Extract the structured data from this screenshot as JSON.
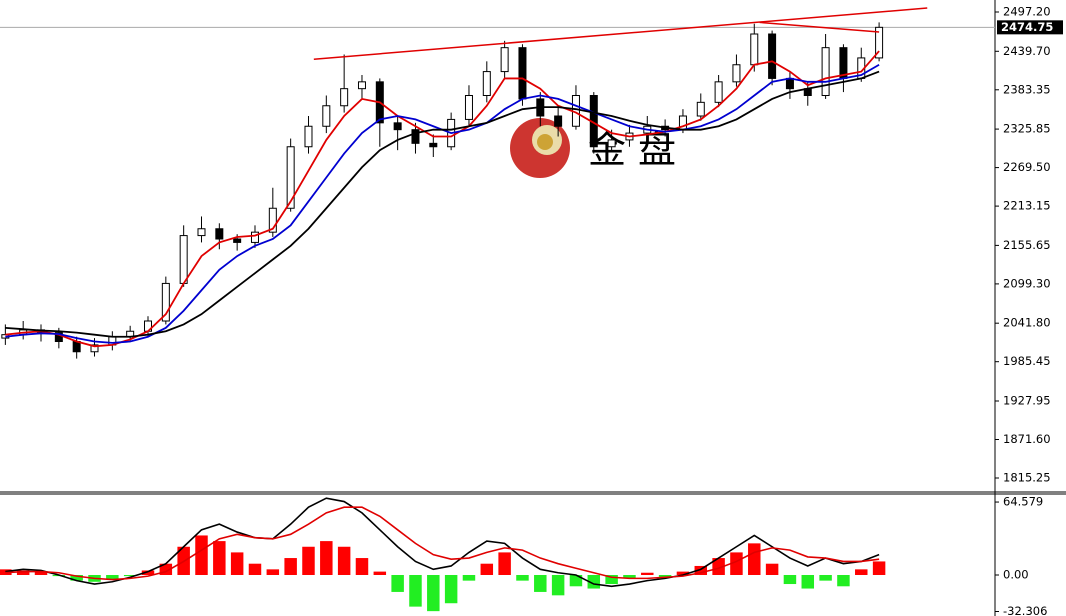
{
  "chart_data": [
    {
      "type": "candlestick",
      "watermark": "金 盘",
      "open": [
        2020,
        2025,
        2032,
        2028,
        2015,
        2000,
        2010,
        2022,
        2030,
        2045,
        2100,
        2170,
        2180,
        2165,
        2160,
        2175,
        2210,
        2300,
        2330,
        2360,
        2385,
        2395,
        2335,
        2325,
        2305,
        2300,
        2340,
        2375,
        2410,
        2445,
        2370,
        2345,
        2330,
        2375,
        2300,
        2310,
        2320,
        2330,
        2325,
        2345,
        2365,
        2395,
        2420,
        2465,
        2400,
        2385,
        2375,
        2445,
        2400,
        2430
      ],
      "high": [
        2040,
        2045,
        2040,
        2035,
        2022,
        2020,
        2030,
        2038,
        2052,
        2110,
        2185,
        2198,
        2188,
        2172,
        2185,
        2240,
        2312,
        2345,
        2375,
        2435,
        2405,
        2400,
        2345,
        2335,
        2318,
        2350,
        2390,
        2425,
        2455,
        2450,
        2380,
        2360,
        2390,
        2380,
        2325,
        2332,
        2345,
        2340,
        2355,
        2378,
        2405,
        2435,
        2480,
        2470,
        2410,
        2395,
        2465,
        2450,
        2445,
        2482
      ],
      "low": [
        2010,
        2018,
        2015,
        2005,
        1990,
        1993,
        2002,
        2015,
        2022,
        2040,
        2095,
        2160,
        2150,
        2148,
        2152,
        2168,
        2205,
        2290,
        2320,
        2350,
        2370,
        2300,
        2295,
        2290,
        2285,
        2295,
        2330,
        2365,
        2400,
        2360,
        2330,
        2315,
        2325,
        2290,
        2295,
        2300,
        2312,
        2315,
        2320,
        2338,
        2358,
        2388,
        2410,
        2390,
        2370,
        2360,
        2370,
        2380,
        2395,
        2425
      ],
      "close": [
        2025,
        2032,
        2028,
        2015,
        2000,
        2010,
        2022,
        2030,
        2045,
        2100,
        2170,
        2180,
        2165,
        2160,
        2175,
        2210,
        2300,
        2330,
        2360,
        2385,
        2395,
        2335,
        2325,
        2305,
        2300,
        2340,
        2375,
        2410,
        2445,
        2370,
        2345,
        2330,
        2375,
        2300,
        2310,
        2320,
        2330,
        2325,
        2345,
        2365,
        2395,
        2420,
        2465,
        2400,
        2385,
        2375,
        2445,
        2400,
        2430,
        2474.75
      ],
      "up_color": "#ffffff",
      "down_color": "#000000",
      "series": [
        {
          "color": "#e00000",
          "values": [
            2025,
            2028,
            2030,
            2025,
            2015,
            2008,
            2010,
            2018,
            2030,
            2055,
            2100,
            2140,
            2160,
            2168,
            2170,
            2180,
            2220,
            2265,
            2310,
            2345,
            2370,
            2365,
            2345,
            2330,
            2315,
            2315,
            2330,
            2360,
            2400,
            2400,
            2385,
            2360,
            2350,
            2335,
            2320,
            2315,
            2318,
            2322,
            2330,
            2340,
            2360,
            2385,
            2420,
            2425,
            2410,
            2390,
            2400,
            2405,
            2410,
            2440
          ]
        },
        {
          "color": "#0000d0",
          "values": [
            2022,
            2025,
            2027,
            2026,
            2020,
            2015,
            2013,
            2015,
            2022,
            2035,
            2060,
            2090,
            2120,
            2140,
            2155,
            2165,
            2185,
            2220,
            2255,
            2290,
            2320,
            2340,
            2345,
            2340,
            2330,
            2320,
            2325,
            2335,
            2355,
            2370,
            2375,
            2370,
            2360,
            2350,
            2340,
            2330,
            2325,
            2322,
            2325,
            2330,
            2340,
            2355,
            2375,
            2395,
            2400,
            2395,
            2395,
            2400,
            2405,
            2420
          ]
        },
        {
          "color": "#000000",
          "values": [
            2035,
            2033,
            2031,
            2030,
            2028,
            2025,
            2022,
            2022,
            2025,
            2030,
            2040,
            2055,
            2075,
            2095,
            2115,
            2135,
            2155,
            2180,
            2210,
            2240,
            2270,
            2295,
            2310,
            2320,
            2325,
            2325,
            2330,
            2335,
            2345,
            2355,
            2358,
            2358,
            2355,
            2350,
            2345,
            2338,
            2332,
            2328,
            2325,
            2325,
            2330,
            2340,
            2355,
            2370,
            2380,
            2385,
            2390,
            2395,
            2400,
            2410
          ]
        }
      ],
      "trend_lines": [
        {
          "color": "#e00000",
          "x": [
            17.3,
            51.7
          ],
          "values": [
            2428,
            2503
          ]
        },
        {
          "color": "#e00000",
          "x": [
            42.3,
            49
          ],
          "values": [
            2482,
            2468
          ]
        }
      ],
      "last_price": {
        "value": 2474.75,
        "label": "2474.75"
      },
      "xlim": [
        -0.3,
        55.5
      ],
      "ylim": [
        1794.76,
        2514.76
      ],
      "yticks": [
        {
          "value": 2497.2,
          "label": "2497.20"
        },
        {
          "value": 2439.7,
          "label": "2439.70"
        },
        2383.35,
        2325.85,
        {
          "value": 2269.5,
          "label": "2269.50"
        },
        2213.15,
        2155.65,
        {
          "value": 2099.3,
          "label": "2099.30"
        },
        {
          "value": 2041.8,
          "label": "2041.80"
        },
        1985.45,
        1927.95,
        {
          "value": 1871.6,
          "label": "1871.60"
        },
        1815.25
      ]
    },
    {
      "type": "macd",
      "values": [
        5,
        4,
        3,
        -1,
        -5,
        -6,
        -4,
        -1,
        4,
        10,
        25,
        35,
        30,
        20,
        10,
        5,
        15,
        25,
        30,
        25,
        15,
        3,
        -15,
        -28,
        -32,
        -25,
        -5,
        10,
        20,
        -5,
        -15,
        -18,
        -10,
        -12,
        -8,
        -3,
        2,
        -2,
        3,
        8,
        15,
        20,
        28,
        10,
        -8,
        -12,
        -5,
        -10,
        5,
        12
      ],
      "positive_color": "#ff0000",
      "negative_color": "#22ee22",
      "series": [
        {
          "color": "#000000",
          "values": [
            3,
            5,
            4,
            0,
            -5,
            -8,
            -6,
            -2,
            3,
            10,
            25,
            40,
            45,
            38,
            33,
            32,
            45,
            60,
            68,
            65,
            55,
            40,
            25,
            12,
            5,
            8,
            20,
            30,
            28,
            15,
            5,
            2,
            0,
            -8,
            -10,
            -8,
            -5,
            -3,
            0,
            5,
            15,
            25,
            35,
            25,
            15,
            8,
            15,
            10,
            12,
            18
          ]
        },
        {
          "color": "#e00000",
          "values": [
            2,
            3,
            3,
            2,
            -1,
            -3,
            -4,
            -3,
            -1,
            3,
            12,
            22,
            32,
            36,
            33,
            32,
            36,
            45,
            55,
            60,
            60,
            52,
            40,
            28,
            18,
            14,
            15,
            20,
            24,
            22,
            15,
            10,
            6,
            2,
            -2,
            -3,
            -3,
            -2,
            -1,
            2,
            6,
            12,
            20,
            24,
            22,
            16,
            15,
            12,
            12,
            14
          ]
        }
      ],
      "xlim": [
        -0.3,
        55.5
      ],
      "ylim": [
        -36.3,
        71.7
      ],
      "yticks": [
        64.579,
        {
          "value": 0,
          "label": "0.00"
        },
        -32.306
      ]
    }
  ]
}
